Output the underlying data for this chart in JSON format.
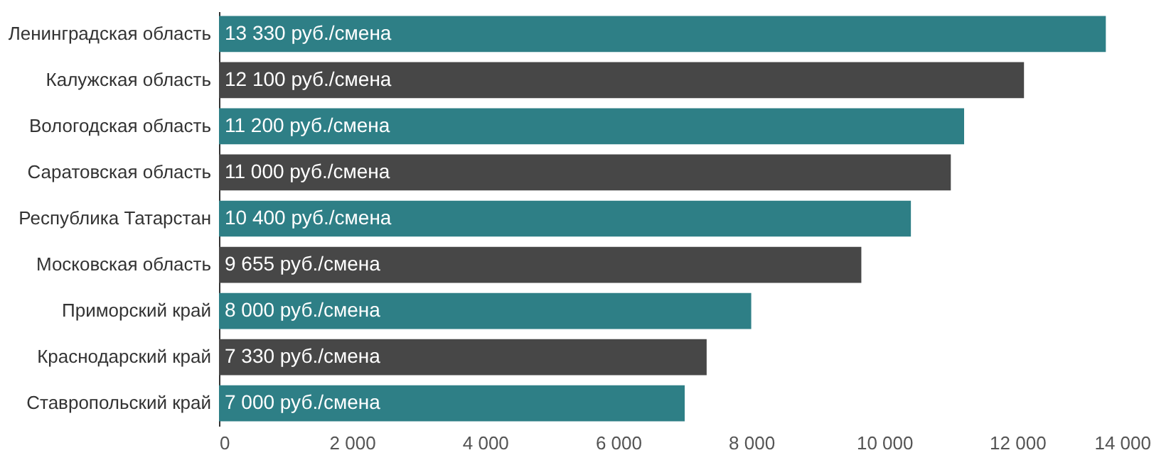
{
  "chart_data": {
    "type": "bar",
    "orientation": "horizontal",
    "categories": [
      "Ленинградская область",
      "Калужская область",
      "Вологодская область",
      "Саратовская область",
      "Республика Татарстан",
      "Московская область",
      "Приморский край",
      "Краснодарский край",
      "Ставропольский край"
    ],
    "values": [
      13330,
      12100,
      11200,
      11000,
      10400,
      9655,
      8000,
      7330,
      7000
    ],
    "colors": [
      "#2e7f86",
      "#474747",
      "#2e7f86",
      "#474747",
      "#2e7f86",
      "#474747",
      "#2e7f86",
      "#474747",
      "#2e7f86"
    ],
    "value_labels": [
      "13 330 руб./смена",
      "12 100 руб./смена",
      "11 200 руб./смена",
      "11 000 руб./смена",
      "10 400 руб./смена",
      "9 655 руб./смена",
      "8 000 руб./смена",
      "7 330 руб./смена",
      "7 000 руб./смена"
    ],
    "xlim": [
      0,
      14000
    ],
    "xticks": [
      0,
      {
        "value": 2000,
        "label": "2 000"
      },
      {
        "value": 4000,
        "label": "4 000"
      },
      {
        "value": 6000,
        "label": "6 000"
      },
      {
        "value": 8000,
        "label": "8 000"
      },
      {
        "value": 10000,
        "label": "10 000"
      },
      {
        "value": 12000,
        "label": "12 000"
      },
      {
        "value": 14000,
        "label": "14 000"
      }
    ],
    "grid": false
  }
}
